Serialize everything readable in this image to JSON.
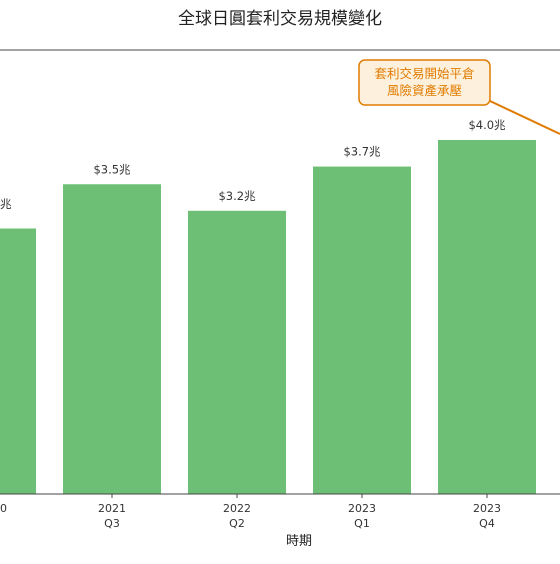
{
  "chart_data": {
    "type": "bar",
    "title": "全球日圓套利交易規模變化",
    "xlabel": "時期",
    "ylabel": "",
    "categories": [
      [
        "",
        ""
      ],
      [
        "2021",
        "Q3"
      ],
      [
        "2022",
        "Q2"
      ],
      [
        "2023",
        "Q1"
      ],
      [
        "2023",
        "Q4"
      ],
      [
        "",
        ""
      ]
    ],
    "values": [
      3.0,
      3.5,
      3.2,
      3.7,
      4.0,
      null
    ],
    "data_labels": [
      "",
      "$3.5兆",
      "$3.2兆",
      "$3.7兆",
      "$4.0兆",
      ""
    ],
    "partial_labels": [
      {
        "index": 0,
        "text": "兆",
        "tick": "0"
      }
    ],
    "ylim": [
      0,
      4.6
    ],
    "grid": false,
    "bar_color": "#6cbf74",
    "annotation": {
      "lines": [
        "套利交易開始平倉",
        "風險資產承壓"
      ],
      "text_color": "#e07b00",
      "box_fill": "#fdf1dd",
      "border_color": "#e07b00",
      "arrow_color": "#e07b00"
    }
  }
}
